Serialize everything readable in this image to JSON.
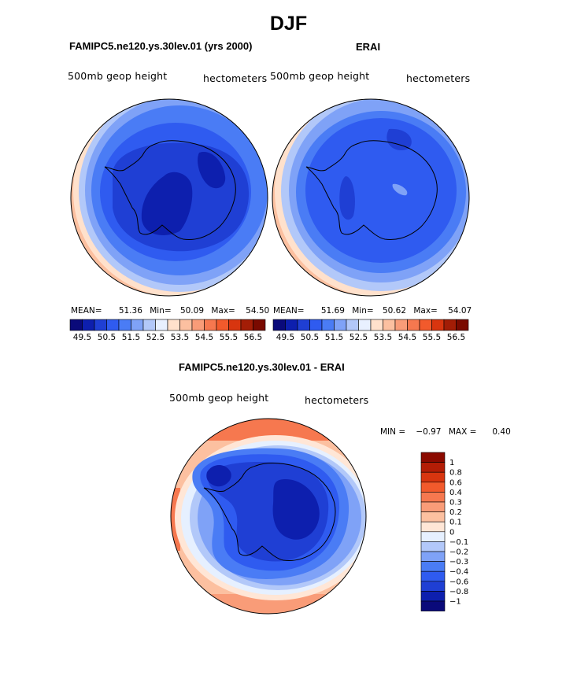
{
  "title": "DJF",
  "panels": [
    {
      "title": "FAMIPC5.ne120.ys.30lev.01 (yrs 2000)",
      "left_label": "500mb geop height",
      "right_label": "hectometers",
      "stats": {
        "mean_label": "MEAN=",
        "mean": "51.36",
        "min_label": "Min=",
        "min": "50.09",
        "max_label": "Max=",
        "max": "54.50"
      }
    },
    {
      "title": "ERAI",
      "left_label": "500mb geop height",
      "right_label": "hectometers",
      "stats": {
        "mean_label": "MEAN=",
        "mean": "51.69",
        "min_label": "Min=",
        "min": "50.62",
        "max_label": "Max=",
        "max": "54.07"
      }
    },
    {
      "title": "FAMIPC5.ne120.ys.30lev.01 - ERAI",
      "left_label": "500mb geop height",
      "right_label": "hectometers",
      "minmax": {
        "min_label": "MIN =",
        "min": "−0.97",
        "max_label": "MAX =",
        "max": "0.40"
      }
    }
  ],
  "chart_data": [
    {
      "type": "heatmap",
      "projection": "south-polar-stereographic",
      "field": "500mb geop height",
      "units": "hectometers",
      "colorbar": {
        "orientation": "horizontal",
        "tick_labels": [
          "49.5",
          "50.5",
          "51.5",
          "52.5",
          "53.5",
          "54.5",
          "55.5",
          "56.5"
        ],
        "colors": [
          "#0a0a7a",
          "#0d1fae",
          "#1f3fd4",
          "#2f5bf0",
          "#4a7cf5",
          "#7fa2f7",
          "#b2c8f9",
          "#e8f0ff",
          "#ffe1cc",
          "#fcc0a0",
          "#f99c78",
          "#f6784f",
          "#f25a2c",
          "#d8350f",
          "#a31d06",
          "#7a0a00"
        ]
      },
      "mean": 51.36,
      "min": 50.09,
      "max": 54.5
    },
    {
      "type": "heatmap",
      "projection": "south-polar-stereographic",
      "field": "500mb geop height",
      "units": "hectometers",
      "colorbar": {
        "orientation": "horizontal",
        "tick_labels": [
          "49.5",
          "50.5",
          "51.5",
          "52.5",
          "53.5",
          "54.5",
          "55.5",
          "56.5"
        ],
        "colors": [
          "#0a0a7a",
          "#0d1fae",
          "#1f3fd4",
          "#2f5bf0",
          "#4a7cf5",
          "#7fa2f7",
          "#b2c8f9",
          "#e8f0ff",
          "#ffe1cc",
          "#fcc0a0",
          "#f99c78",
          "#f6784f",
          "#f25a2c",
          "#d8350f",
          "#a31d06",
          "#7a0a00"
        ]
      },
      "mean": 51.69,
      "min": 50.62,
      "max": 54.07
    },
    {
      "type": "heatmap",
      "projection": "south-polar-stereographic",
      "field": "500mb geop height",
      "units": "hectometers",
      "colorbar": {
        "orientation": "vertical",
        "tick_labels": [
          "1",
          "0.8",
          "0.6",
          "0.4",
          "0.3",
          "0.2",
          "0.1",
          "0",
          "−0.1",
          "−0.2",
          "−0.3",
          "−0.4",
          "−0.6",
          "−0.8",
          "−1"
        ],
        "colors": [
          "#8b0a00",
          "#b31d06",
          "#d8350f",
          "#f25a2c",
          "#f6784f",
          "#f99c78",
          "#fcc0a0",
          "#ffe6d6",
          "#e6f0ff",
          "#b2c8f9",
          "#7fa2f7",
          "#4a7cf5",
          "#2f5bf0",
          "#1f3fd4",
          "#0d1fae",
          "#0a0a7a"
        ]
      },
      "min": -0.97,
      "max": 0.4
    }
  ]
}
